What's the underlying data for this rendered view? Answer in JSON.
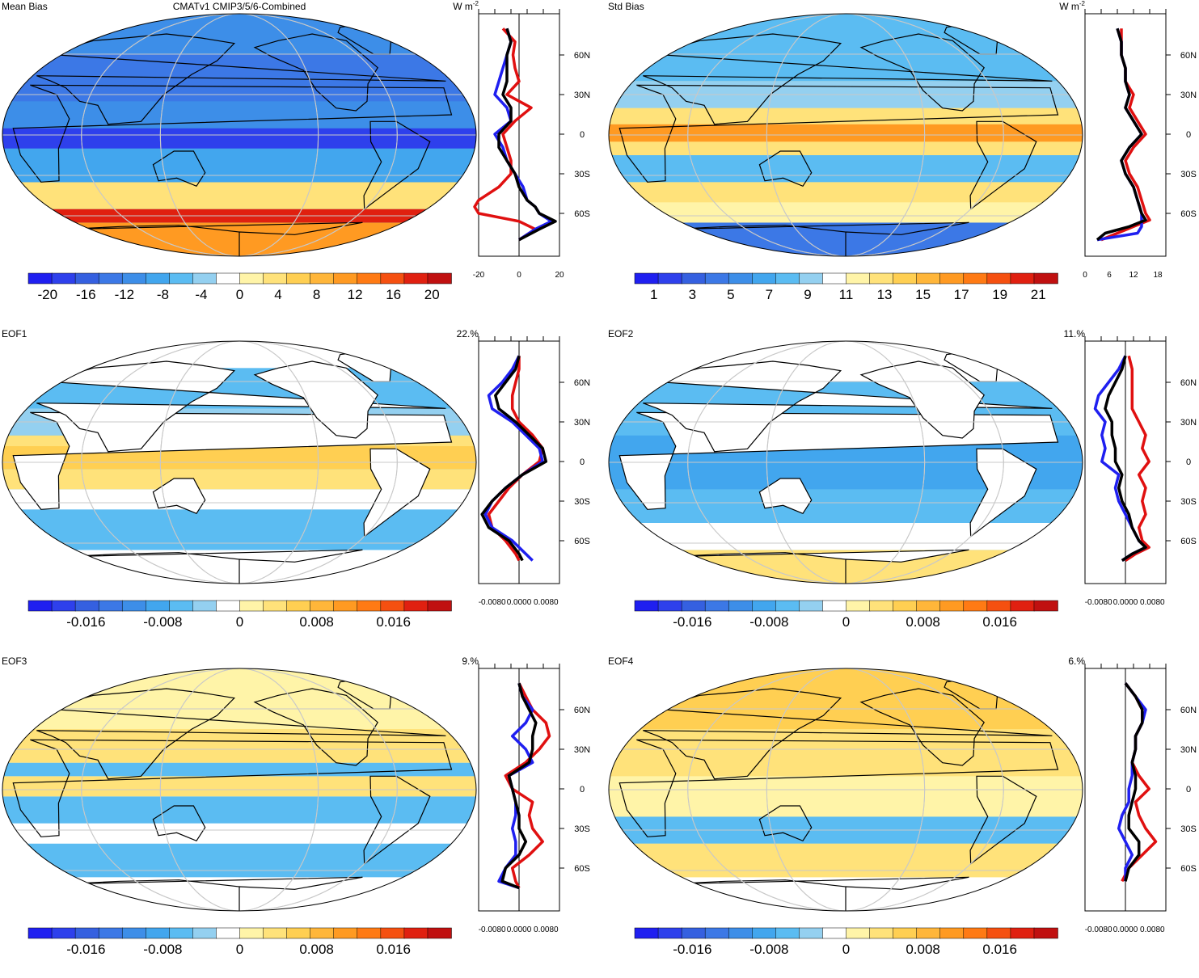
{
  "figure": {
    "title": "CMATv1 CMIP3/5/6-Combined",
    "land_color": "#ffffff",
    "coast_color": "#000000",
    "grid_color": "#c8c8c8",
    "palette": [
      "#1f1ff0",
      "#2e40ec",
      "#3560e0",
      "#3c78e6",
      "#3d8ee8",
      "#42a6ee",
      "#5bbcf2",
      "#94d0f0",
      "#ffffff",
      "#fff4a8",
      "#ffe27a",
      "#ffcf52",
      "#ffb63a",
      "#ff9a22",
      "#ff7a14",
      "#f55010",
      "#e02010",
      "#c01010"
    ]
  },
  "chart_data": [
    {
      "id": "mean_bias",
      "type": "heatmap",
      "panel_label": "Mean Bias",
      "units": "W m-2",
      "percent": "",
      "colorbar": {
        "ticks": [
          "-20",
          "-16",
          "-12",
          "-8",
          "-4",
          "0",
          "4",
          "8",
          "12",
          "16",
          "20"
        ],
        "range": [
          -22,
          22
        ]
      },
      "zonal": {
        "xlim": [
          -20,
          20
        ],
        "xticks": [
          "-20",
          "0",
          "20"
        ],
        "lat_ticks": [
          "60N",
          "30N",
          "0",
          "30S",
          "60S"
        ],
        "series": [
          {
            "color": "#e01010",
            "lat": [
              80,
              70,
              60,
              50,
              40,
              30,
              20,
              10,
              0,
              -10,
              -20,
              -30,
              -40,
              -50,
              -55,
              -60,
              -66,
              -72,
              -80
            ],
            "values": [
              -8,
              -2,
              -3,
              -2,
              0,
              -6,
              6,
              -2,
              -8,
              -6,
              -4,
              -4,
              -10,
              -20,
              -22,
              -20,
              0,
              8,
              0
            ]
          },
          {
            "color": "#1f1ff0",
            "lat": [
              80,
              70,
              60,
              50,
              40,
              30,
              20,
              10,
              0,
              -10,
              -20,
              -30,
              -40,
              -50,
              -55,
              -60,
              -66,
              -72,
              -80
            ],
            "values": [
              -6,
              -4,
              -6,
              -8,
              -10,
              -12,
              -6,
              -4,
              -12,
              -8,
              -6,
              -2,
              2,
              4,
              8,
              10,
              16,
              8,
              0
            ]
          },
          {
            "color": "#000000",
            "lat": [
              80,
              70,
              60,
              50,
              40,
              30,
              20,
              10,
              0,
              -10,
              -20,
              -30,
              -40,
              -50,
              -55,
              -60,
              -66,
              -72,
              -80
            ],
            "values": [
              -6,
              -4,
              -6,
              -6,
              -6,
              -8,
              -4,
              -4,
              -10,
              -10,
              -6,
              -2,
              0,
              4,
              8,
              10,
              18,
              10,
              0
            ]
          }
        ]
      }
    },
    {
      "id": "std_bias",
      "type": "heatmap",
      "panel_label": "Std Bias",
      "units": "W m-2",
      "percent": "",
      "colorbar": {
        "ticks": [
          "1",
          "3",
          "5",
          "7",
          "9",
          "11",
          "13",
          "15",
          "17",
          "19",
          "21"
        ],
        "range": [
          0,
          22
        ]
      },
      "zonal": {
        "xlim": [
          0,
          20
        ],
        "xticks": [
          "0",
          "6",
          "12",
          "18"
        ],
        "lat_ticks": [
          "60N",
          "30N",
          "0",
          "30S",
          "60S"
        ],
        "series": [
          {
            "color": "#e01010",
            "lat": [
              80,
              70,
              60,
              50,
              40,
              30,
              20,
              10,
              0,
              -10,
              -20,
              -30,
              -40,
              -50,
              -60,
              -65,
              -70,
              -75,
              -80
            ],
            "values": [
              9,
              9,
              9,
              10,
              10,
              12,
              11,
              13,
              15,
              12,
              10,
              11,
              13,
              14,
              15,
              16,
              12,
              8,
              4
            ]
          },
          {
            "color": "#1f1ff0",
            "lat": [
              80,
              70,
              60,
              50,
              40,
              30,
              20,
              10,
              0,
              -10,
              -20,
              -30,
              -40,
              -50,
              -60,
              -65,
              -70,
              -75,
              -80
            ],
            "values": [
              8,
              9,
              9,
              10,
              10,
              11,
              10,
              12,
              14,
              11,
              9,
              10,
              12,
              13,
              14,
              14,
              14,
              13,
              3
            ]
          },
          {
            "color": "#000000",
            "lat": [
              80,
              70,
              60,
              50,
              40,
              30,
              20,
              10,
              0,
              -10,
              -20,
              -30,
              -40,
              -50,
              -60,
              -65,
              -70,
              -75,
              -80
            ],
            "values": [
              8,
              9,
              9,
              10,
              10,
              11,
              10,
              12,
              14,
              11,
              9,
              10,
              12,
              13,
              14,
              15,
              11,
              5,
              3
            ]
          }
        ]
      }
    },
    {
      "id": "eof1",
      "type": "heatmap",
      "panel_label": "EOF1",
      "units": "",
      "percent": "22.%",
      "colorbar": {
        "ticks": [
          "-0.016",
          "-0.008",
          "0",
          "0.008",
          "0.016"
        ],
        "range": [
          -0.022,
          0.022
        ]
      },
      "zonal": {
        "xlim": [
          -0.012,
          0.012
        ],
        "xticks": [
          "-0.0080",
          "0.0000",
          "0.0080"
        ],
        "lat_ticks": [
          "60N",
          "30N",
          "0",
          "30S",
          "60S"
        ],
        "series": [
          {
            "color": "#e01010",
            "lat": [
              80,
              70,
              60,
              50,
              40,
              30,
              20,
              10,
              0,
              -10,
              -20,
              -30,
              -40,
              -50,
              -60,
              -70,
              -75
            ],
            "values": [
              0,
              0,
              -0.001,
              -0.002,
              -0.002,
              0,
              0.004,
              0.007,
              0.006,
              0.001,
              -0.003,
              -0.006,
              -0.009,
              -0.008,
              -0.004,
              -0.001,
              0
            ]
          },
          {
            "color": "#1f1ff0",
            "lat": [
              80,
              70,
              60,
              50,
              40,
              30,
              20,
              10,
              0,
              -10,
              -20,
              -30,
              -40,
              -50,
              -60,
              -70,
              -75
            ],
            "values": [
              0,
              -0.002,
              -0.005,
              -0.009,
              -0.008,
              -0.002,
              0.002,
              0.006,
              0.007,
              0.001,
              -0.004,
              -0.008,
              -0.01,
              -0.008,
              -0.002,
              0.002,
              0.004
            ]
          },
          {
            "color": "#000000",
            "lat": [
              80,
              70,
              60,
              50,
              40,
              30,
              20,
              10,
              0,
              -10,
              -20,
              -30,
              -40,
              -50,
              -60,
              -70,
              -75
            ],
            "values": [
              0,
              -0.001,
              -0.004,
              -0.007,
              -0.006,
              -0.001,
              0.003,
              0.007,
              0.008,
              0.001,
              -0.004,
              -0.008,
              -0.011,
              -0.009,
              -0.003,
              0,
              0.001
            ]
          }
        ]
      }
    },
    {
      "id": "eof2",
      "type": "heatmap",
      "panel_label": "EOF2",
      "units": "",
      "percent": "11.%",
      "colorbar": {
        "ticks": [
          "-0.016",
          "-0.008",
          "0",
          "0.008",
          "0.016"
        ],
        "range": [
          -0.022,
          0.022
        ]
      },
      "zonal": {
        "xlim": [
          -0.012,
          0.012
        ],
        "xticks": [
          "-0.0080",
          "0.0000",
          "0.0080"
        ],
        "lat_ticks": [
          "60N",
          "30N",
          "0",
          "30S",
          "60S"
        ],
        "series": [
          {
            "color": "#e01010",
            "lat": [
              80,
              70,
              60,
              50,
              40,
              30,
              20,
              10,
              0,
              -10,
              -20,
              -30,
              -40,
              -50,
              -60,
              -65,
              -70,
              -75
            ],
            "values": [
              0.001,
              0.002,
              0.002,
              0.002,
              0.002,
              0.004,
              0.006,
              0.005,
              0.007,
              0.004,
              0.006,
              0.005,
              0.006,
              0.004,
              0.005,
              0.007,
              0.003,
              0
            ]
          },
          {
            "color": "#1f1ff0",
            "lat": [
              80,
              70,
              60,
              50,
              40,
              30,
              20,
              10,
              0,
              -10,
              -20,
              -30,
              -40,
              -50,
              -60,
              -65,
              -70,
              -75
            ],
            "values": [
              0,
              -0.002,
              -0.005,
              -0.008,
              -0.009,
              -0.006,
              -0.007,
              -0.006,
              -0.007,
              -0.002,
              -0.003,
              -0.002,
              0,
              0.002,
              0.004,
              0.006,
              0.002,
              -0.001
            ]
          },
          {
            "color": "#000000",
            "lat": [
              80,
              70,
              60,
              50,
              40,
              30,
              20,
              10,
              0,
              -10,
              -20,
              -30,
              -40,
              -50,
              -60,
              -65,
              -70,
              -75
            ],
            "values": [
              0,
              -0.001,
              -0.003,
              -0.005,
              -0.006,
              -0.004,
              -0.004,
              -0.003,
              -0.003,
              -0.001,
              -0.002,
              -0.001,
              0.001,
              0.002,
              0.004,
              0.006,
              0.002,
              -0.001
            ]
          }
        ]
      }
    },
    {
      "id": "eof3",
      "type": "heatmap",
      "panel_label": "EOF3",
      "units": "",
      "percent": "9.%",
      "colorbar": {
        "ticks": [
          "-0.016",
          "-0.008",
          "0",
          "0.008",
          "0.016"
        ],
        "range": [
          -0.022,
          0.022
        ]
      },
      "zonal": {
        "xlim": [
          -0.012,
          0.012
        ],
        "xticks": [
          "-0.0080",
          "0.0000",
          "0.0080"
        ],
        "lat_ticks": [
          "60N",
          "30N",
          "0",
          "30S",
          "60S"
        ],
        "series": [
          {
            "color": "#e01010",
            "lat": [
              80,
              70,
              60,
              50,
              40,
              30,
              20,
              10,
              0,
              -10,
              -20,
              -30,
              -40,
              -50,
              -60,
              -70,
              -75
            ],
            "values": [
              0,
              0.002,
              0.004,
              0.008,
              0.009,
              0.006,
              0.002,
              -0.004,
              -0.002,
              0.004,
              0.003,
              0.004,
              0.007,
              0.003,
              -0.002,
              -0.001,
              0
            ]
          },
          {
            "color": "#1f1ff0",
            "lat": [
              80,
              70,
              60,
              50,
              40,
              30,
              20,
              10,
              0,
              -10,
              -20,
              -30,
              -40,
              -50,
              -60,
              -70,
              -75
            ],
            "values": [
              0,
              0.001,
              0.004,
              0.002,
              -0.002,
              0.002,
              0.004,
              -0.003,
              -0.002,
              -0.001,
              -0.001,
              -0.002,
              -0.001,
              -0.001,
              -0.004,
              -0.006,
              0
            ]
          },
          {
            "color": "#000000",
            "lat": [
              80,
              70,
              60,
              50,
              40,
              30,
              20,
              10,
              0,
              -10,
              -20,
              -30,
              -40,
              -50,
              -60,
              -70,
              -75
            ],
            "values": [
              0,
              0.001,
              0.003,
              0.005,
              0.004,
              0.004,
              0.003,
              -0.003,
              -0.002,
              -0.001,
              0,
              0,
              0.002,
              0,
              -0.004,
              -0.005,
              0
            ]
          }
        ]
      }
    },
    {
      "id": "eof4",
      "type": "heatmap",
      "panel_label": "EOF4",
      "units": "",
      "percent": "6.%",
      "colorbar": {
        "ticks": [
          "-0.016",
          "-0.008",
          "0",
          "0.008",
          "0.016"
        ],
        "range": [
          -0.022,
          0.022
        ]
      },
      "zonal": {
        "xlim": [
          -0.012,
          0.012
        ],
        "xticks": [
          "-0.0080",
          "0.0000",
          "0.0080"
        ],
        "lat_ticks": [
          "60N",
          "30N",
          "0",
          "30S",
          "60S"
        ],
        "series": [
          {
            "color": "#e01010",
            "lat": [
              80,
              70,
              60,
              50,
              40,
              30,
              20,
              10,
              0,
              -10,
              -20,
              -30,
              -40,
              -50,
              -60,
              -70
            ],
            "values": [
              0,
              0.003,
              0.005,
              0.005,
              0.003,
              0.003,
              0.002,
              0.004,
              0.007,
              0.003,
              0.004,
              0.006,
              0.009,
              0.005,
              0.001,
              -0.001
            ]
          },
          {
            "color": "#1f1ff0",
            "lat": [
              80,
              70,
              60,
              50,
              40,
              30,
              20,
              10,
              0,
              -10,
              -20,
              -30,
              -40,
              -50,
              -60,
              -70
            ],
            "values": [
              0,
              0.003,
              0.006,
              0.005,
              0.003,
              0.003,
              0.002,
              0.002,
              0.001,
              0.001,
              -0.001,
              -0.002,
              0,
              0.002,
              0,
              0
            ]
          },
          {
            "color": "#000000",
            "lat": [
              80,
              70,
              60,
              50,
              40,
              30,
              20,
              10,
              0,
              -10,
              -20,
              -30,
              -40,
              -50,
              -60,
              -70
            ],
            "values": [
              0,
              0.003,
              0.005,
              0.005,
              0.003,
              0.003,
              0.002,
              0.003,
              0.003,
              0.002,
              0.001,
              0.001,
              0.004,
              0.004,
              0.001,
              0
            ]
          }
        ]
      }
    }
  ]
}
